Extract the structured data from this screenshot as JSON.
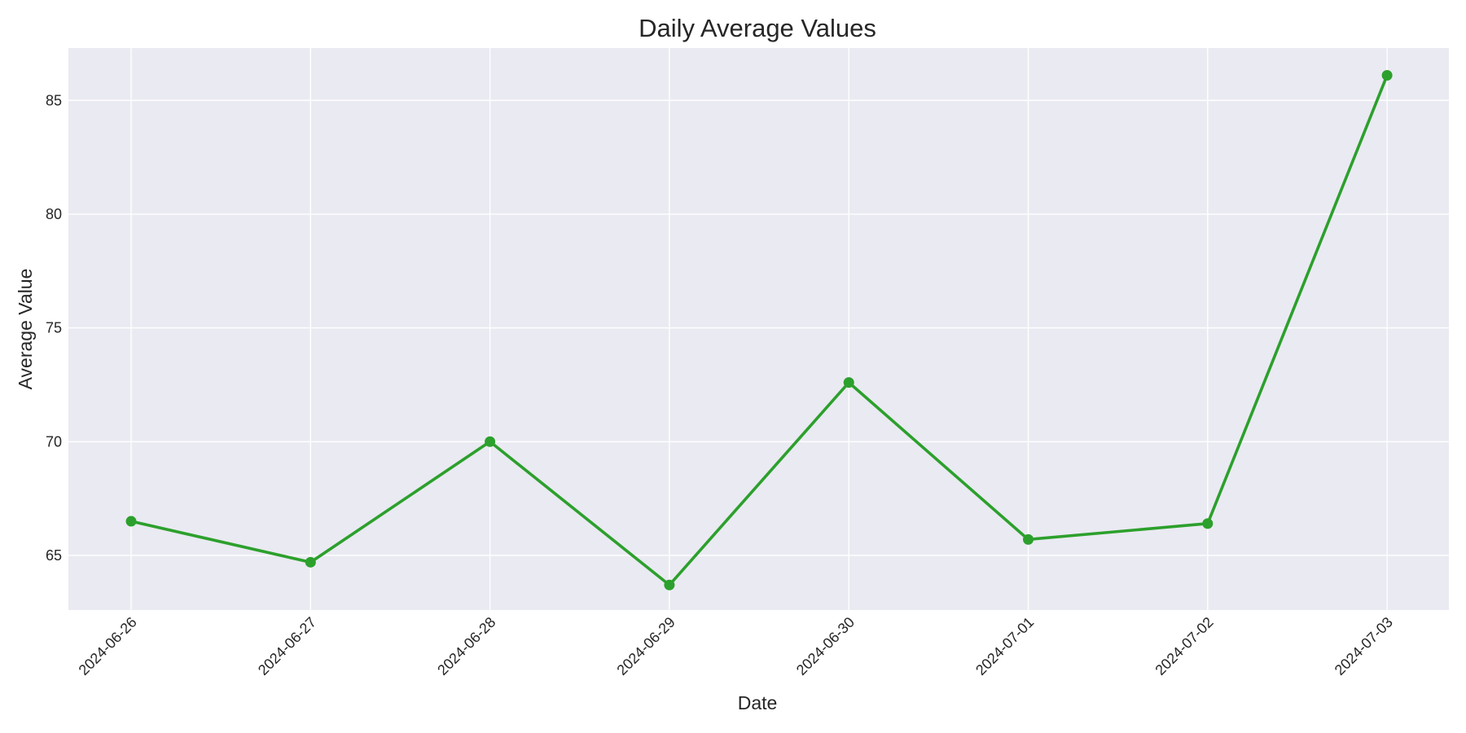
{
  "chart_data": {
    "type": "line",
    "title": "Daily Average Values",
    "xlabel": "Date",
    "ylabel": "Average Value",
    "x": [
      "2024-06-26",
      "2024-06-27",
      "2024-06-28",
      "2024-06-29",
      "2024-06-30",
      "2024-07-01",
      "2024-07-02",
      "2024-07-03"
    ],
    "series": [
      {
        "values": [
          66.5,
          64.7,
          70.0,
          63.7,
          72.6,
          65.7,
          66.4,
          86.1
        ],
        "color": "#2ca02c",
        "marker": "circle"
      }
    ],
    "ylim": [
      62.6,
      87.3
    ],
    "yticks": [
      65,
      70,
      75,
      80,
      85
    ],
    "grid": true,
    "background_color": "#eaeaf2"
  }
}
